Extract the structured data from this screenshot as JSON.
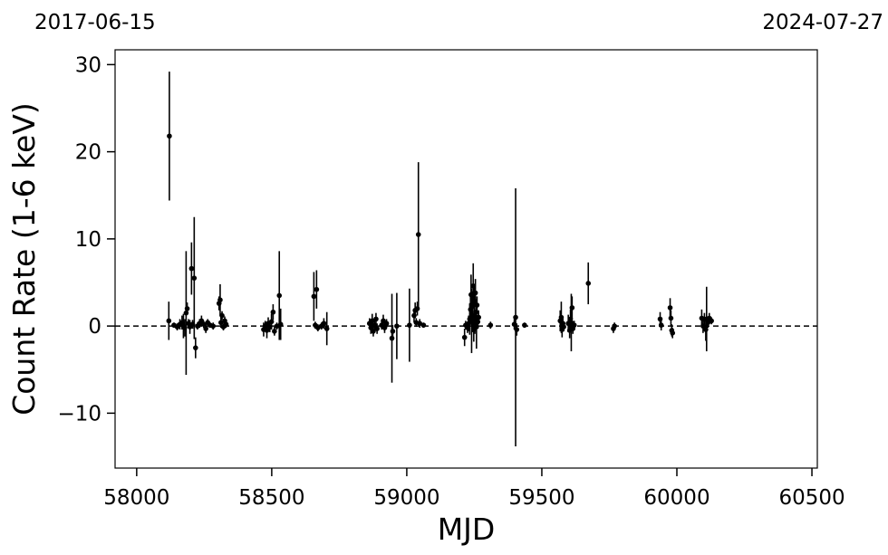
{
  "chart_data": {
    "type": "scatter",
    "xlabel": "MJD",
    "ylabel": "Count Rate (1-6 keV)",
    "xlim": [
      57920,
      60520
    ],
    "ylim": [
      -16.3,
      31.7
    ],
    "x_ticks": [
      58000,
      58500,
      59000,
      59500,
      60000,
      60500
    ],
    "y_ticks": [
      -10,
      0,
      10,
      20,
      30
    ],
    "x_tick_labels": [
      "58000",
      "58500",
      "59000",
      "59500",
      "60000",
      "60500"
    ],
    "y_tick_labels": [
      "−10",
      "0",
      "10",
      "20",
      "30"
    ],
    "top_left_date": "2017-06-15",
    "top_right_date": "2024-07-27",
    "reference_line": {
      "y": 0,
      "style": "dashed"
    },
    "grid": false,
    "marker_color": "#000000",
    "points": [
      {
        "x": 58119,
        "y": 0.6,
        "err": 2.2
      },
      {
        "x": 58121,
        "y": 21.8,
        "err": 7.4
      },
      {
        "x": 58138,
        "y": 0.1,
        "err": 0.3
      },
      {
        "x": 58150,
        "y": -0.1,
        "err": 0.4
      },
      {
        "x": 58160,
        "y": 0.2,
        "err": 0.6
      },
      {
        "x": 58168,
        "y": 0.4,
        "err": 0.8
      },
      {
        "x": 58173,
        "y": 0.0,
        "err": 1.4
      },
      {
        "x": 58178,
        "y": -0.2,
        "err": 1.0
      },
      {
        "x": 58183,
        "y": 1.5,
        "err": 7.1
      },
      {
        "x": 58187,
        "y": 2.0,
        "err": 0.7
      },
      {
        "x": 58192,
        "y": 0.3,
        "err": 0.5
      },
      {
        "x": 58197,
        "y": -0.1,
        "err": 0.8
      },
      {
        "x": 58203,
        "y": 6.6,
        "err": 3.0
      },
      {
        "x": 58207,
        "y": 0.2,
        "err": 0.5
      },
      {
        "x": 58213,
        "y": 5.5,
        "err": 7.0
      },
      {
        "x": 58218,
        "y": -2.5,
        "err": 1.2
      },
      {
        "x": 58225,
        "y": 0.0,
        "err": 0.4
      },
      {
        "x": 58233,
        "y": 0.3,
        "err": 0.5
      },
      {
        "x": 58240,
        "y": 0.6,
        "err": 0.6
      },
      {
        "x": 58248,
        "y": 0.2,
        "err": 0.4
      },
      {
        "x": 58256,
        "y": -0.3,
        "err": 0.5
      },
      {
        "x": 58263,
        "y": 0.4,
        "err": 0.4
      },
      {
        "x": 58272,
        "y": 0.1,
        "err": 0.3
      },
      {
        "x": 58283,
        "y": 0.0,
        "err": 0.4
      },
      {
        "x": 58305,
        "y": 2.6,
        "err": 0.8
      },
      {
        "x": 58309,
        "y": 3.0,
        "err": 1.8
      },
      {
        "x": 58312,
        "y": 0.4,
        "err": 0.6
      },
      {
        "x": 58316,
        "y": 1.2,
        "err": 0.5
      },
      {
        "x": 58321,
        "y": -0.1,
        "err": 0.4
      },
      {
        "x": 58326,
        "y": 0.6,
        "err": 0.5
      },
      {
        "x": 58331,
        "y": 0.2,
        "err": 0.4
      },
      {
        "x": 58470,
        "y": -0.4,
        "err": 0.8
      },
      {
        "x": 58476,
        "y": 0.0,
        "err": 0.6
      },
      {
        "x": 58482,
        "y": -0.5,
        "err": 0.9
      },
      {
        "x": 58487,
        "y": 0.3,
        "err": 0.7
      },
      {
        "x": 58493,
        "y": -0.1,
        "err": 0.6
      },
      {
        "x": 58499,
        "y": 0.5,
        "err": 0.9
      },
      {
        "x": 58505,
        "y": 1.6,
        "err": 0.9
      },
      {
        "x": 58510,
        "y": -0.6,
        "err": 0.5
      },
      {
        "x": 58519,
        "y": 0.0,
        "err": 0.4
      },
      {
        "x": 58528,
        "y": 3.5,
        "err": 5.1
      },
      {
        "x": 58533,
        "y": 0.2,
        "err": 1.8
      },
      {
        "x": 58656,
        "y": 3.4,
        "err": 2.8
      },
      {
        "x": 58661,
        "y": 0.1,
        "err": 0.4
      },
      {
        "x": 58666,
        "y": 4.2,
        "err": 2.2
      },
      {
        "x": 58671,
        "y": -0.2,
        "err": 0.4
      },
      {
        "x": 58684,
        "y": 0.0,
        "err": 0.4
      },
      {
        "x": 58693,
        "y": 0.3,
        "err": 0.6
      },
      {
        "x": 58704,
        "y": -0.3,
        "err": 1.9
      },
      {
        "x": 58862,
        "y": 0.3,
        "err": 0.6
      },
      {
        "x": 58867,
        "y": -0.2,
        "err": 0.7
      },
      {
        "x": 58872,
        "y": 0.6,
        "err": 0.8
      },
      {
        "x": 58876,
        "y": -0.6,
        "err": 0.6
      },
      {
        "x": 58881,
        "y": 0.1,
        "err": 0.5
      },
      {
        "x": 58886,
        "y": 0.8,
        "err": 0.7
      },
      {
        "x": 58890,
        "y": -0.3,
        "err": 0.6
      },
      {
        "x": 58907,
        "y": 0.1,
        "err": 0.5
      },
      {
        "x": 58913,
        "y": 0.6,
        "err": 0.7
      },
      {
        "x": 58918,
        "y": -0.2,
        "err": 0.6
      },
      {
        "x": 58925,
        "y": 0.3,
        "err": 0.5
      },
      {
        "x": 58945,
        "y": -1.4,
        "err": 5.1
      },
      {
        "x": 58948,
        "y": -0.6,
        "err": 0.7
      },
      {
        "x": 58963,
        "y": 0.0,
        "err": 3.8
      },
      {
        "x": 59010,
        "y": 0.1,
        "err": 4.2
      },
      {
        "x": 59027,
        "y": 1.2,
        "err": 0.8
      },
      {
        "x": 59031,
        "y": 1.8,
        "err": 0.9
      },
      {
        "x": 59035,
        "y": 0.4,
        "err": 0.5
      },
      {
        "x": 59039,
        "y": 2.0,
        "err": 0.8
      },
      {
        "x": 59043,
        "y": 10.5,
        "err": 8.3
      },
      {
        "x": 59048,
        "y": 0.3,
        "err": 0.5
      },
      {
        "x": 59062,
        "y": 0.1,
        "err": 0.3
      },
      {
        "x": 59214,
        "y": -1.3,
        "err": 1.0
      },
      {
        "x": 59218,
        "y": 0.1,
        "err": 0.5
      },
      {
        "x": 59225,
        "y": -0.2,
        "err": 0.6
      },
      {
        "x": 59229,
        "y": 0.3,
        "err": 0.9
      },
      {
        "x": 59233,
        "y": 0.8,
        "err": 1.8
      },
      {
        "x": 59236,
        "y": 1.9,
        "err": 1.5
      },
      {
        "x": 59238,
        "y": 3.6,
        "err": 2.3
      },
      {
        "x": 59240,
        "y": 0.6,
        "err": 3.7
      },
      {
        "x": 59242,
        "y": 2.6,
        "err": 1.4
      },
      {
        "x": 59244,
        "y": 1.2,
        "err": 1.9
      },
      {
        "x": 59246,
        "y": 4.6,
        "err": 2.6
      },
      {
        "x": 59248,
        "y": -0.4,
        "err": 1.4
      },
      {
        "x": 59250,
        "y": 2.9,
        "err": 1.8
      },
      {
        "x": 59252,
        "y": 0.3,
        "err": 1.2
      },
      {
        "x": 59254,
        "y": 3.8,
        "err": 1.6
      },
      {
        "x": 59256,
        "y": 1.6,
        "err": 1.2
      },
      {
        "x": 59258,
        "y": -0.1,
        "err": 2.5
      },
      {
        "x": 59260,
        "y": 2.4,
        "err": 1.0
      },
      {
        "x": 59263,
        "y": 0.5,
        "err": 0.8
      },
      {
        "x": 59266,
        "y": 1.0,
        "err": 0.8
      },
      {
        "x": 59310,
        "y": 0.1,
        "err": 0.4
      },
      {
        "x": 59398,
        "y": 0.2,
        "err": 0.6
      },
      {
        "x": 59403,
        "y": 1.0,
        "err": 14.8
      },
      {
        "x": 59407,
        "y": -0.4,
        "err": 0.7
      },
      {
        "x": 59436,
        "y": 0.1,
        "err": 0.3
      },
      {
        "x": 59568,
        "y": 0.6,
        "err": 1.2
      },
      {
        "x": 59572,
        "y": 1.0,
        "err": 1.8
      },
      {
        "x": 59575,
        "y": -0.4,
        "err": 0.9
      },
      {
        "x": 59578,
        "y": 0.3,
        "err": 0.6
      },
      {
        "x": 59581,
        "y": -0.1,
        "err": 0.5
      },
      {
        "x": 59598,
        "y": 0.3,
        "err": 1.0
      },
      {
        "x": 59603,
        "y": -0.5,
        "err": 0.9
      },
      {
        "x": 59606,
        "y": 0.8,
        "err": 1.1
      },
      {
        "x": 59609,
        "y": 0.4,
        "err": 3.3
      },
      {
        "x": 59612,
        "y": 2.1,
        "err": 1.3
      },
      {
        "x": 59615,
        "y": -0.3,
        "err": 0.6
      },
      {
        "x": 59620,
        "y": 0.1,
        "err": 0.5
      },
      {
        "x": 59672,
        "y": 4.9,
        "err": 2.4
      },
      {
        "x": 59765,
        "y": -0.3,
        "err": 0.5
      },
      {
        "x": 59769,
        "y": 0.0,
        "err": 0.4
      },
      {
        "x": 59938,
        "y": 0.8,
        "err": 0.8
      },
      {
        "x": 59942,
        "y": 0.1,
        "err": 0.6
      },
      {
        "x": 59975,
        "y": 2.1,
        "err": 1.1
      },
      {
        "x": 59978,
        "y": 0.9,
        "err": 0.9
      },
      {
        "x": 59981,
        "y": -0.5,
        "err": 0.7
      },
      {
        "x": 59984,
        "y": -0.8,
        "err": 0.6
      },
      {
        "x": 60092,
        "y": 0.9,
        "err": 1.0
      },
      {
        "x": 60097,
        "y": 0.0,
        "err": 0.8
      },
      {
        "x": 60102,
        "y": 0.8,
        "err": 0.7
      },
      {
        "x": 60107,
        "y": -0.4,
        "err": 1.3
      },
      {
        "x": 60110,
        "y": 0.8,
        "err": 3.7
      },
      {
        "x": 60115,
        "y": 0.4,
        "err": 0.6
      },
      {
        "x": 60120,
        "y": 0.9,
        "err": 0.6
      },
      {
        "x": 60128,
        "y": 0.6,
        "err": 0.4
      }
    ]
  }
}
